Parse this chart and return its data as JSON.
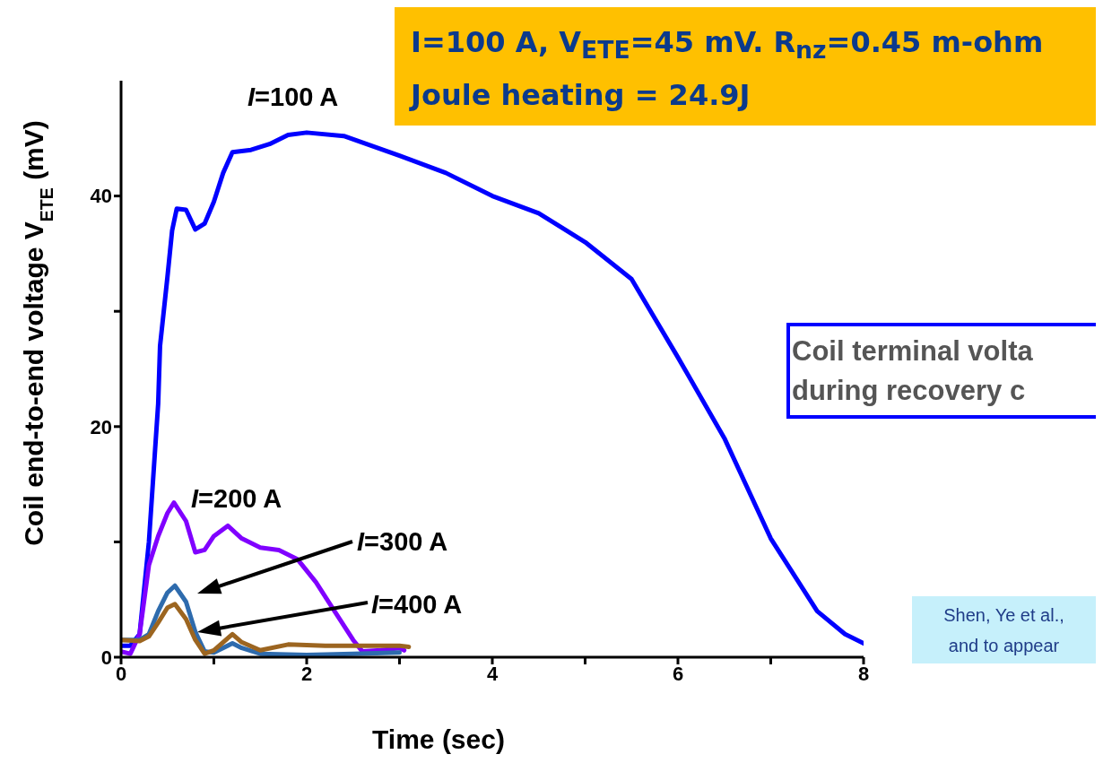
{
  "chart_data": {
    "type": "line",
    "xlabel": "Time (sec)",
    "ylabel": "Coil end-to-end voltage V$_{ETE}$ (mV)",
    "xlim": [
      0,
      8
    ],
    "xticks": [
      0,
      {
        "value": 1,
        "label": null
      },
      2,
      {
        "value": 3,
        "label": null
      },
      4,
      {
        "value": 5,
        "label": null
      },
      6,
      {
        "value": 7,
        "label": null
      },
      8
    ],
    "ylim": [
      0,
      50
    ],
    "yticks": [
      0,
      {
        "value": 10,
        "label": null
      },
      20,
      {
        "value": 30,
        "label": null
      },
      40
    ],
    "marker": "none",
    "line_style": "solid",
    "series": [
      {
        "name": "I=100 A",
        "color": "#0000ff",
        "x": [
          0,
          0.1,
          0.2,
          0.3,
          0.4,
          0.42,
          0.5,
          0.55,
          0.6,
          0.7,
          0.8,
          0.9,
          1.0,
          1.1,
          1.2,
          1.4,
          1.6,
          1.8,
          2.0,
          2.4,
          3.0,
          3.5,
          4.0,
          4.5,
          5.0,
          5.5,
          6.0,
          6.5,
          7.0,
          7.5,
          7.8,
          8.0
        ],
        "values": [
          1,
          1,
          2,
          10,
          22,
          27,
          33,
          37,
          38.9,
          38.8,
          37.1,
          37.6,
          39.5,
          42,
          43.8,
          44,
          44.5,
          45.3,
          45.5,
          45.2,
          43.5,
          42,
          40,
          38.5,
          36,
          32.8,
          26,
          19,
          10.3,
          4,
          2,
          1.2
        ]
      },
      {
        "name": "I=200 A",
        "color": "#8000ff",
        "x": [
          0,
          0.1,
          0.2,
          0.3,
          0.4,
          0.5,
          0.57,
          0.7,
          0.8,
          0.9,
          1.0,
          1.15,
          1.3,
          1.5,
          1.7,
          1.9,
          2.1,
          2.3,
          2.5,
          2.6,
          2.8,
          3.0,
          3.05
        ],
        "values": [
          0.5,
          0.3,
          2,
          8,
          10.5,
          12.5,
          13.4,
          11.8,
          9.1,
          9.3,
          10.5,
          11.4,
          10.3,
          9.5,
          9.3,
          8.5,
          6.5,
          4,
          1.5,
          0.5,
          0.6,
          0.8,
          0.6
        ]
      },
      {
        "name": "I=300 A",
        "color": "#2e6bad",
        "x": [
          0,
          0.2,
          0.3,
          0.4,
          0.5,
          0.58,
          0.7,
          0.8,
          0.9,
          1.0,
          1.2,
          1.3,
          1.5,
          2.0,
          2.5,
          3.0
        ],
        "values": [
          1.5,
          1.5,
          2,
          4,
          5.6,
          6.2,
          4.8,
          2.2,
          0.5,
          0.4,
          1.2,
          0.8,
          0.3,
          0.2,
          0.3,
          0.4
        ]
      },
      {
        "name": "I=400 A",
        "color": "#9c6520",
        "x": [
          0,
          0.2,
          0.3,
          0.4,
          0.5,
          0.58,
          0.7,
          0.8,
          0.9,
          1.0,
          1.2,
          1.3,
          1.5,
          1.8,
          2.2,
          2.6,
          3.0,
          3.1
        ],
        "values": [
          1.5,
          1.4,
          1.8,
          3,
          4.3,
          4.6,
          3.3,
          1.5,
          0.3,
          0.6,
          2,
          1.3,
          0.6,
          1.1,
          1,
          1,
          1,
          0.9
        ]
      }
    ],
    "annotations": [
      "I=100 A, V$_{ETE}$=45 mV. R$_{nz}$=0.45 m-ohm",
      "Joule heating = 24.9J",
      "Coil terminal volta",
      "during recovery c",
      "Shen, Ye et al.,",
      "and to appear"
    ]
  }
}
